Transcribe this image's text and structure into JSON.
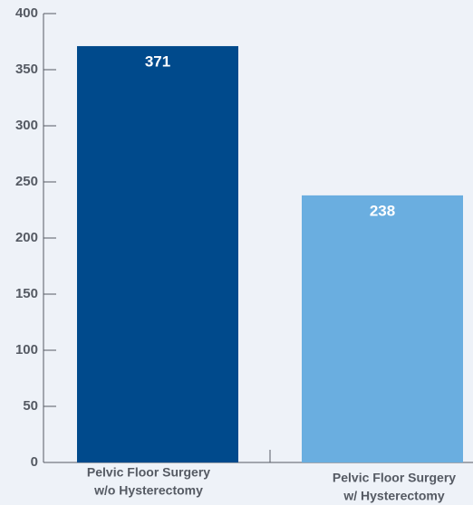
{
  "chart_data": {
    "type": "bar",
    "categories": [
      [
        "Pelvic Floor Surgery",
        "w/o Hysterectomy"
      ],
      [
        "Pelvic Floor Surgery",
        "w/ Hysterectomy"
      ]
    ],
    "values": [
      371,
      238
    ],
    "colors": [
      "#004a8c",
      "#6aaee0"
    ],
    "ylim": [
      0,
      400
    ],
    "yticks": [
      0,
      50,
      100,
      150,
      200,
      250,
      300,
      350,
      400
    ]
  }
}
